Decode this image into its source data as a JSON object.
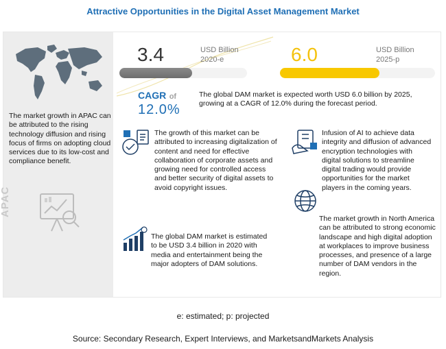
{
  "title": "Attractive Opportunities in the Digital Asset Management Market",
  "left_panel": {
    "region_label": "APAC",
    "apac_text": "The market growth in APAC can be attributed to the rising technology diffusion and rising focus of firms on adopting cloud services due to its low-cost and compliance benefit."
  },
  "value_2020": {
    "value": "3.4",
    "unit": "USD Billion",
    "year": "2020-e",
    "fill": 0.57
  },
  "value_2025": {
    "value": "6.0",
    "unit": "USD Billion",
    "year": "2025-p",
    "fill": 0.64
  },
  "cagr": {
    "label": "CAGR",
    "of": "of",
    "value": "12.0%"
  },
  "summary": "The global DAM market is expected worth USD 6.0 billion by 2025, growing at a CAGR of 12.0% during the forecast period.",
  "points": {
    "growth": "The growth of this market can be attributed to increasing digitalization of content and need for effective collaboration of corporate assets and growing need for controlled access and better security of digital assets to avoid copyright issues.",
    "global_2020": "The global DAM market is estimated to be USD 3.4 billion in 2020 with media and entertainment being the major adopters of DAM solutions.",
    "ai": "Infusion of AI to achieve data integrity and diffusion of advanced encryption technologies with digital solutions to streamline digital trading would provide opportunities for the market players in the coming years.",
    "north_america": "The market growth in North America can be attributed to strong economic landscape and high digital adoption at workplaces to improve business processes, and presence of a large number of DAM vendors in the region."
  },
  "footnote": "e: estimated; p: projected",
  "source": "Source: Secondary Research, Expert Interviews, and MarketsandMarkets Analysis",
  "colors": {
    "accent": "#1f6fb5",
    "yellow": "#f8c800",
    "gray_bar": "#7a7a7a",
    "panel_bg": "#ededed"
  }
}
